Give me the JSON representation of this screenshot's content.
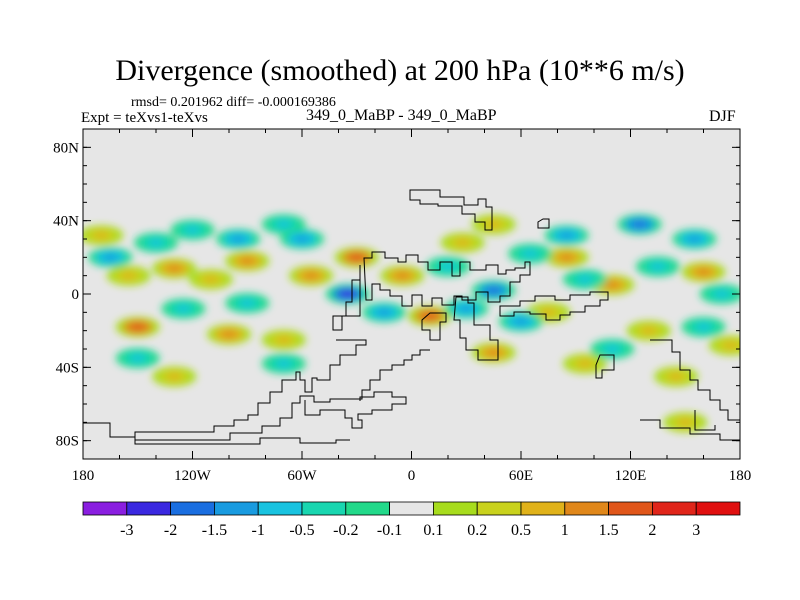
{
  "header": {
    "title": "Divergence (smoothed) at 200 hPa (10**6 m/s)",
    "stats": "rmsd= 0.201962 diff= -0.000169386",
    "expt": "Expt = teXvs1-teXvs",
    "experiment_name": "349_0_MaBP - 349_0_MaBP",
    "season": "DJF"
  },
  "chart_data": {
    "type": "heatmap",
    "title": "Divergence (smoothed) at 200 hPa (10**6 m/s)",
    "x_range": [
      -180,
      180
    ],
    "y_range": [
      -90,
      90
    ],
    "x_ticks": [
      {
        "value": -180,
        "label": "180"
      },
      {
        "value": -120,
        "label": "120W"
      },
      {
        "value": -60,
        "label": "60W"
      },
      {
        "value": 0,
        "label": "0"
      },
      {
        "value": 60,
        "label": "60E"
      },
      {
        "value": 120,
        "label": "120E"
      },
      {
        "value": 180,
        "label": "180"
      }
    ],
    "y_ticks": [
      {
        "value": 80,
        "label": "80N"
      },
      {
        "value": 40,
        "label": "40N"
      },
      {
        "value": 0,
        "label": "0"
      },
      {
        "value": -40,
        "label": "40S"
      },
      {
        "value": -80,
        "label": "80S"
      }
    ],
    "colorbar": {
      "labels": [
        "-3",
        "-2",
        "-1.5",
        "-1",
        "-0.5",
        "-0.2",
        "-0.1",
        "0.1",
        "0.2",
        "0.5",
        "1",
        "1.5",
        "2",
        "3"
      ],
      "colors": [
        "#8a1ee0",
        "#3a28e0",
        "#1a6ee0",
        "#199be0",
        "#19c3e0",
        "#19d6b0",
        "#22d98a",
        "#e6e6e6",
        "#a7dc1d",
        "#c9d21d",
        "#e0b21a",
        "#e0871a",
        "#e0561a",
        "#e0251a",
        "#e01010"
      ]
    },
    "field": {
      "no_data_color": "#e6e6e6",
      "positive_blobs": [
        {
          "lon": -170,
          "lat": 32,
          "level": 9
        },
        {
          "lon": -155,
          "lat": 10,
          "level": 9
        },
        {
          "lon": -130,
          "lat": 14,
          "level": 10
        },
        {
          "lon": -110,
          "lat": 8,
          "level": 9
        },
        {
          "lon": -90,
          "lat": 18,
          "level": 10
        },
        {
          "lon": -55,
          "lat": 10,
          "level": 10
        },
        {
          "lon": -30,
          "lat": 20,
          "level": 11
        },
        {
          "lon": -150,
          "lat": -18,
          "level": 11
        },
        {
          "lon": -100,
          "lat": -22,
          "level": 10
        },
        {
          "lon": -70,
          "lat": -25,
          "level": 9
        },
        {
          "lon": -130,
          "lat": -45,
          "level": 9
        },
        {
          "lon": -5,
          "lat": 10,
          "level": 10
        },
        {
          "lon": 10,
          "lat": -12,
          "level": 11
        },
        {
          "lon": 28,
          "lat": 28,
          "level": 9
        },
        {
          "lon": 45,
          "lat": 38,
          "level": 9
        },
        {
          "lon": 45,
          "lat": -32,
          "level": 10
        },
        {
          "lon": 85,
          "lat": 20,
          "level": 10
        },
        {
          "lon": 75,
          "lat": -10,
          "level": 9
        },
        {
          "lon": 110,
          "lat": 5,
          "level": 10
        },
        {
          "lon": 130,
          "lat": -20,
          "level": 9
        },
        {
          "lon": 160,
          "lat": 12,
          "level": 10
        },
        {
          "lon": 175,
          "lat": -28,
          "level": 9
        },
        {
          "lon": 95,
          "lat": -38,
          "level": 9
        },
        {
          "lon": 145,
          "lat": -45,
          "level": 9
        },
        {
          "lon": 150,
          "lat": -70,
          "level": 9
        }
      ],
      "negative_blobs": [
        {
          "lon": -165,
          "lat": 20,
          "level": 4
        },
        {
          "lon": -140,
          "lat": 28,
          "level": 5
        },
        {
          "lon": -120,
          "lat": 35,
          "level": 5
        },
        {
          "lon": -95,
          "lat": 30,
          "level": 4
        },
        {
          "lon": -70,
          "lat": 38,
          "level": 5
        },
        {
          "lon": -60,
          "lat": 30,
          "level": 4
        },
        {
          "lon": -35,
          "lat": 0,
          "level": 2
        },
        {
          "lon": -15,
          "lat": -10,
          "level": 4
        },
        {
          "lon": -125,
          "lat": -8,
          "level": 5
        },
        {
          "lon": -90,
          "lat": -5,
          "level": 5
        },
        {
          "lon": -150,
          "lat": -35,
          "level": 5
        },
        {
          "lon": -70,
          "lat": -38,
          "level": 5
        },
        {
          "lon": 20,
          "lat": 15,
          "level": 5
        },
        {
          "lon": 30,
          "lat": -8,
          "level": 4
        },
        {
          "lon": 45,
          "lat": 2,
          "level": 3
        },
        {
          "lon": 60,
          "lat": -15,
          "level": 4
        },
        {
          "lon": 65,
          "lat": 22,
          "level": 5
        },
        {
          "lon": 85,
          "lat": 32,
          "level": 4
        },
        {
          "lon": 95,
          "lat": 8,
          "level": 5
        },
        {
          "lon": 125,
          "lat": 38,
          "level": 3
        },
        {
          "lon": 135,
          "lat": 15,
          "level": 5
        },
        {
          "lon": 155,
          "lat": 30,
          "level": 4
        },
        {
          "lon": 170,
          "lat": 0,
          "level": 5
        },
        {
          "lon": 110,
          "lat": -30,
          "level": 5
        },
        {
          "lon": 160,
          "lat": -18,
          "level": 5
        }
      ]
    }
  }
}
